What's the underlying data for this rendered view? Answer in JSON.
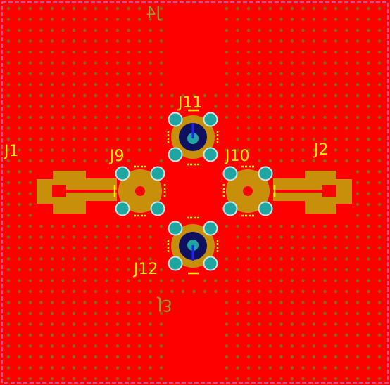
{
  "labels": {
    "j1": "J1",
    "j2": "J2",
    "j3": "J3",
    "j4": "J4",
    "j9": "J9",
    "j10": "J10",
    "j11": "J11",
    "j12": "J12"
  },
  "colors": {
    "board": "#ff0000",
    "copper": "#c8900a",
    "pad": "#20a6a0",
    "pad_ring": "#cfe5e5",
    "via": "#8a6a10",
    "silk": "#ffee00",
    "silk_dim": "#8fa33a",
    "outline": "#b070c8",
    "center_pin": "#101060",
    "pin_line": "#2020ff"
  }
}
